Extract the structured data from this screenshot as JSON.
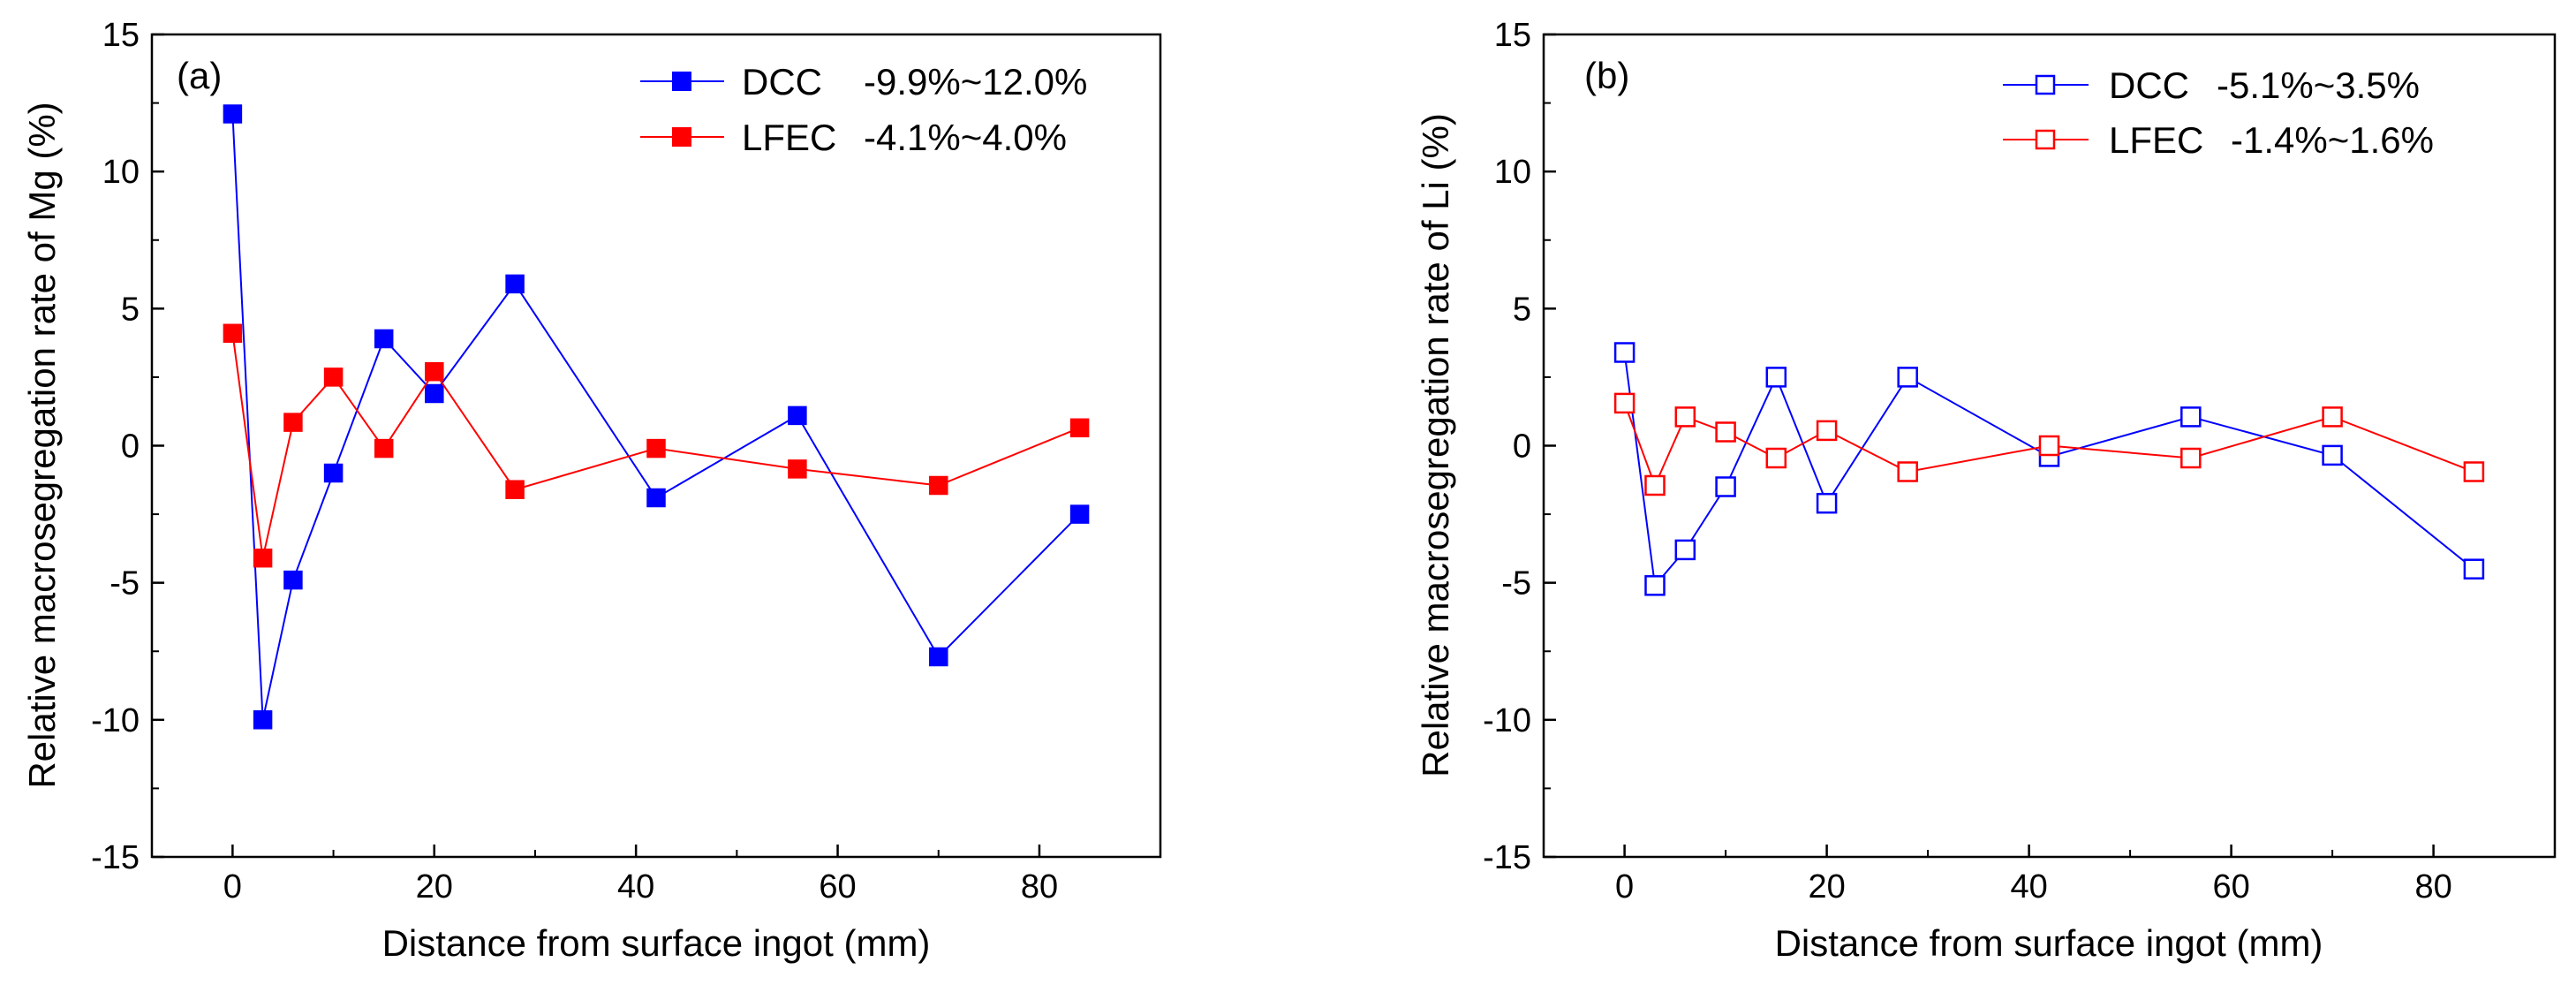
{
  "chart_data": [
    {
      "type": "line",
      "panel_label": "(a)",
      "title": "",
      "xlabel": "Distance from surface ingot (mm)",
      "ylabel": "Relative macrosegregation rate of Mg (%)",
      "xlim": [
        -8,
        92
      ],
      "ylim": [
        -15,
        15
      ],
      "xticks": [
        0,
        20,
        40,
        60,
        80
      ],
      "yticks": [
        -15,
        -10,
        -5,
        0,
        5,
        10,
        15
      ],
      "xtick_labels": [
        "0",
        "20",
        "40",
        "60",
        "80"
      ],
      "ytick_labels": [
        "-15",
        "-10",
        "-5",
        "0",
        "5",
        "10",
        "15"
      ],
      "marker": "filled-square",
      "legend_position": "top-right",
      "series": [
        {
          "name": "DCC",
          "range_label": "-9.9%~12.0%",
          "color": "#0000ff",
          "x": [
            0,
            3,
            6,
            10,
            15,
            20,
            28,
            42,
            56,
            70,
            84
          ],
          "y": [
            12.1,
            -10.0,
            -4.9,
            -1.0,
            3.9,
            1.9,
            5.9,
            -1.9,
            1.1,
            -7.7,
            -2.5
          ]
        },
        {
          "name": "LFEC",
          "range_label": "-4.1%~4.0%",
          "color": "#ff0000",
          "x": [
            0,
            3,
            6,
            10,
            15,
            20,
            28,
            42,
            56,
            70,
            84
          ],
          "y": [
            4.1,
            -4.1,
            0.85,
            2.5,
            -0.1,
            2.7,
            -1.6,
            -0.1,
            -0.85,
            -1.45,
            0.65
          ]
        }
      ]
    },
    {
      "type": "line",
      "panel_label": "(b)",
      "title": "",
      "xlabel": "Distance from surface ingot (mm)",
      "ylabel": "Relative macrosegregation rate of Li (%)",
      "xlim": [
        -8,
        92
      ],
      "ylim": [
        -15,
        15
      ],
      "xticks": [
        0,
        20,
        40,
        60,
        80
      ],
      "yticks": [
        -15,
        -10,
        -5,
        0,
        5,
        10,
        15
      ],
      "xtick_labels": [
        "0",
        "20",
        "40",
        "60",
        "80"
      ],
      "ytick_labels": [
        "-15",
        "-10",
        "-5",
        "0",
        "5",
        "10",
        "15"
      ],
      "marker": "open-square",
      "legend_position": "top-right",
      "series": [
        {
          "name": "DCC",
          "range_label": "-5.1%~3.5%",
          "color": "#0000ff",
          "x": [
            0,
            3,
            6,
            10,
            15,
            20,
            28,
            42,
            56,
            70,
            84
          ],
          "y": [
            3.4,
            -5.1,
            -3.8,
            -1.5,
            2.5,
            -2.1,
            2.5,
            -0.4,
            1.05,
            -0.35,
            -4.5
          ]
        },
        {
          "name": "LFEC",
          "range_label": "-1.4%~1.6%",
          "color": "#ff0000",
          "x": [
            0,
            3,
            6,
            10,
            15,
            20,
            28,
            42,
            56,
            70,
            84
          ],
          "y": [
            1.55,
            -1.45,
            1.05,
            0.5,
            -0.45,
            0.55,
            -0.95,
            0.0,
            -0.45,
            1.05,
            -0.95
          ]
        }
      ]
    }
  ]
}
